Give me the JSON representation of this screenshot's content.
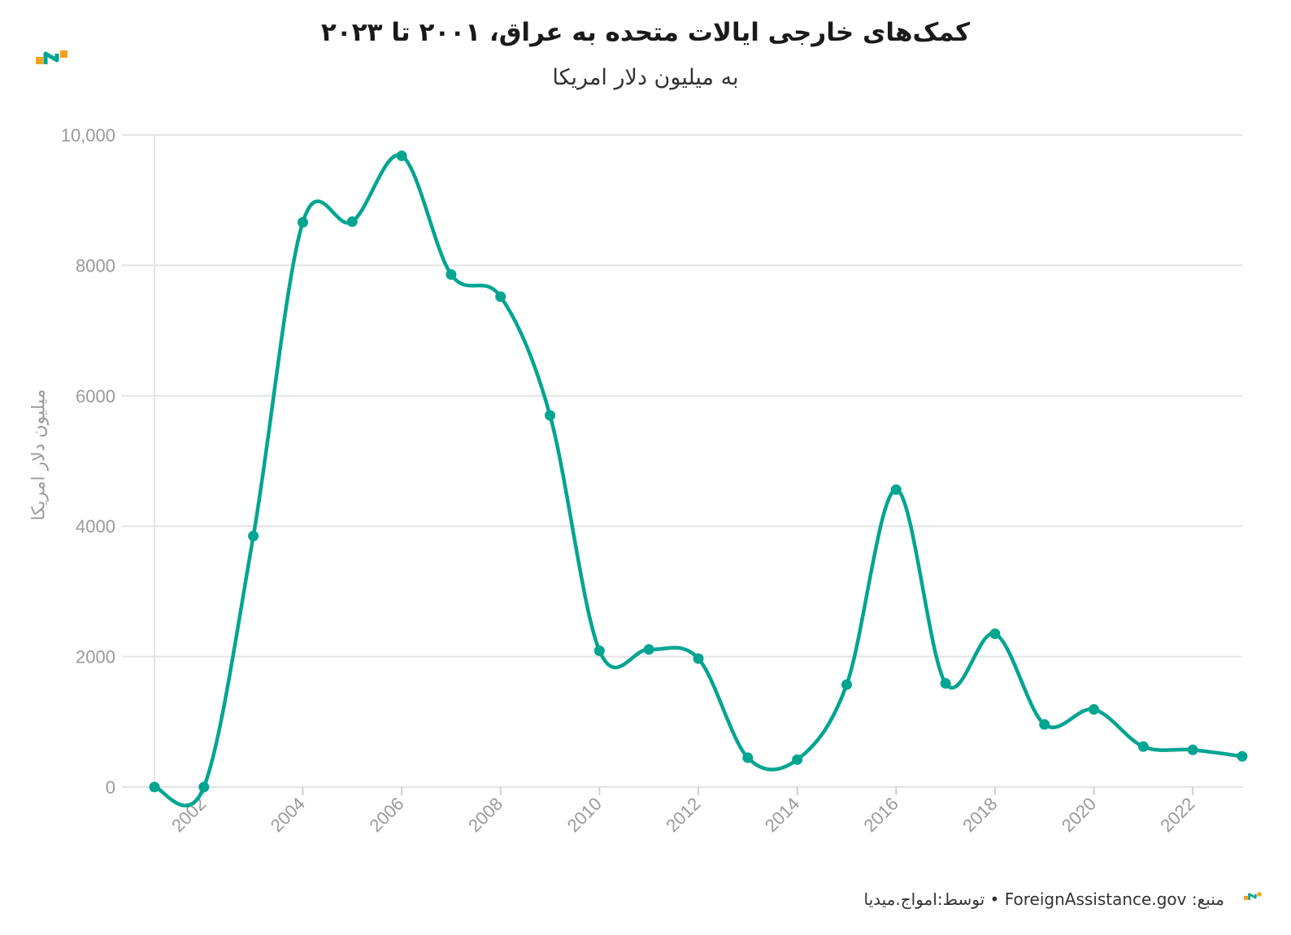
{
  "chart_data": {
    "type": "line",
    "title": "کمک‌های خارجی ایالات متحده به عراق، ۲۰۰۱ تا ۲۰۲۳",
    "subtitle": "به میلیون دلار امریکا",
    "ylabel": "میلیون دلار امریکا",
    "xlabel": "",
    "x": [
      2001,
      2002,
      2003,
      2004,
      2005,
      2006,
      2007,
      2008,
      2009,
      2010,
      2011,
      2012,
      2013,
      2014,
      2015,
      2016,
      2017,
      2018,
      2019,
      2020,
      2021,
      2022,
      2023
    ],
    "values": [
      0,
      0,
      3850,
      8660,
      8670,
      9680,
      7860,
      7520,
      5700,
      2090,
      2110,
      1970,
      450,
      420,
      1570,
      4560,
      1590,
      2350,
      960,
      1190,
      620,
      570,
      470
    ],
    "xlim": [
      2001,
      2023
    ],
    "ylim": [
      0,
      10000
    ],
    "x_ticks": [
      "2002",
      "2004",
      "2006",
      "2008",
      "2010",
      "2012",
      "2014",
      "2016",
      "2018",
      "2020",
      "2022"
    ],
    "y_ticks": [
      "0",
      "2000",
      "4000",
      "6000",
      "8000",
      "10,000"
    ],
    "grid": "horizontal",
    "line_color": "#00a591"
  },
  "footer": {
    "text": "توسط:امواج.میدیا • ForeignAssistance.gov :منبع"
  },
  "branding": {
    "logo_icon": "amwaj-logo-icon",
    "colors": {
      "orange": "#f5a01a",
      "teal": "#00a591"
    }
  }
}
